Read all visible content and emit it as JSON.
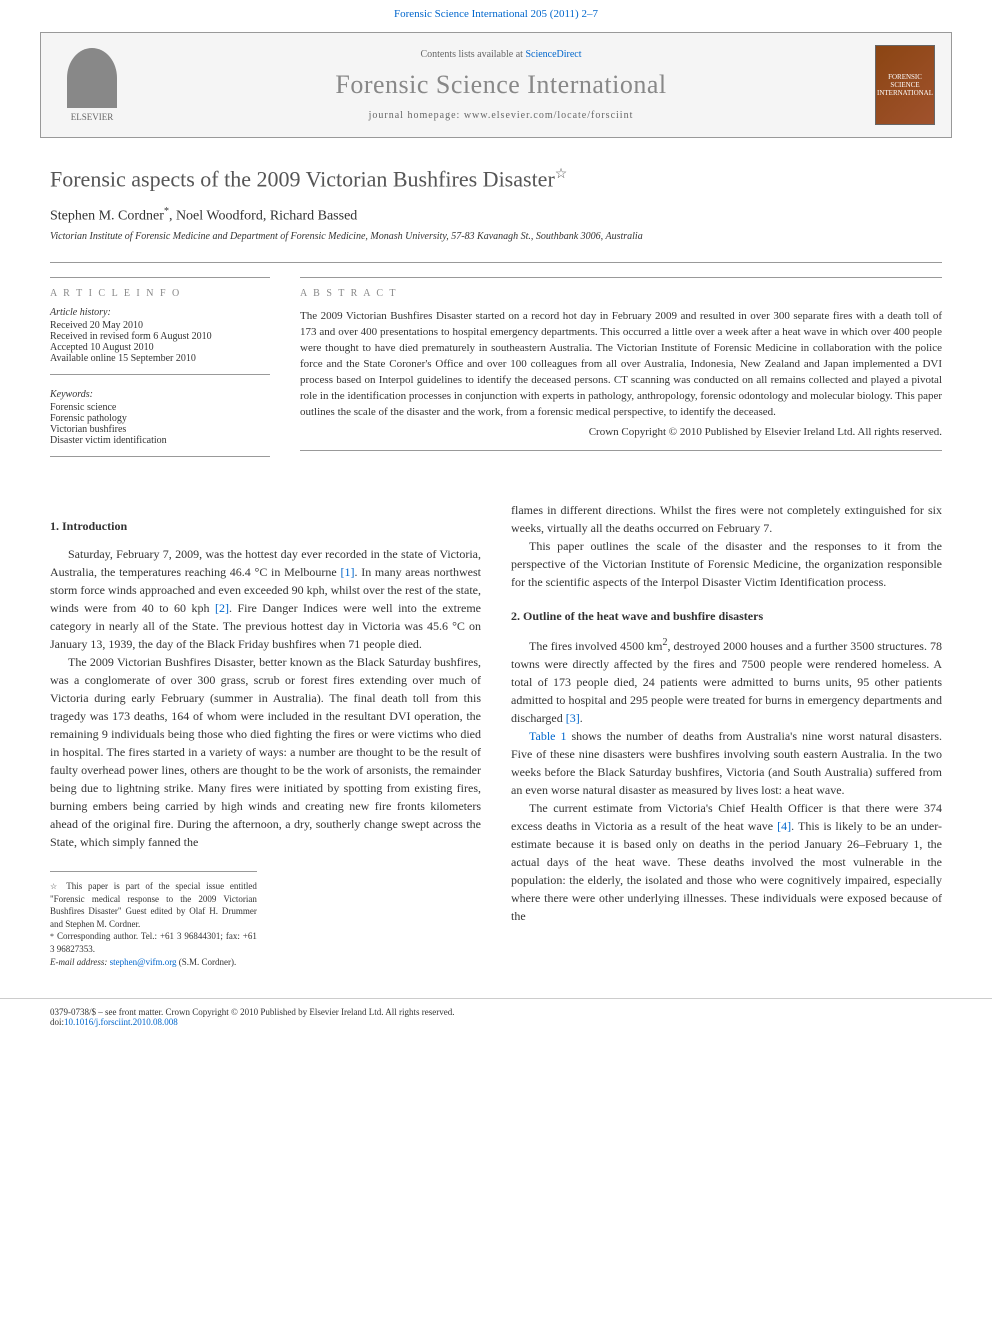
{
  "journal_header": "Forensic Science International 205 (2011) 2–7",
  "header_box": {
    "contents_text": "Contents lists available at ",
    "contents_link": "ScienceDirect",
    "journal_name": "Forensic Science International",
    "homepage_text": "journal homepage: www.elsevier.com/locate/forsciint",
    "elsevier_label": "ELSEVIER",
    "cover_text": "FORENSIC SCIENCE INTERNATIONAL"
  },
  "article": {
    "title": "Forensic aspects of the 2009 Victorian Bushfires Disaster",
    "title_note": "☆",
    "authors": "Stephen M. Cordner",
    "author_mark": "*",
    "authors_rest": ", Noel Woodford, Richard Bassed",
    "affiliation": "Victorian Institute of Forensic Medicine and Department of Forensic Medicine, Monash University, 57-83 Kavanagh St., Southbank 3006, Australia"
  },
  "article_info": {
    "heading": "A R T I C L E   I N F O",
    "history_heading": "Article history:",
    "history": [
      "Received 20 May 2010",
      "Received in revised form 6 August 2010",
      "Accepted 10 August 2010",
      "Available online 15 September 2010"
    ],
    "keywords_heading": "Keywords:",
    "keywords": [
      "Forensic science",
      "Forensic pathology",
      "Victorian bushfires",
      "Disaster victim identification"
    ]
  },
  "abstract": {
    "heading": "A B S T R A C T",
    "text": "The 2009 Victorian Bushfires Disaster started on a record hot day in February 2009 and resulted in over 300 separate fires with a death toll of 173 and over 400 presentations to hospital emergency departments. This occurred a little over a week after a heat wave in which over 400 people were thought to have died prematurely in southeastern Australia. The Victorian Institute of Forensic Medicine in collaboration with the police force and the State Coroner's Office and over 100 colleagues from all over Australia, Indonesia, New Zealand and Japan implemented a DVI process based on Interpol guidelines to identify the deceased persons. CT scanning was conducted on all remains collected and played a pivotal role in the identification processes in conjunction with experts in pathology, anthropology, forensic odontology and molecular biology. This paper outlines the scale of the disaster and the work, from a forensic medical perspective, to identify the deceased.",
    "copyright": "Crown Copyright © 2010 Published by Elsevier Ireland Ltd. All rights reserved."
  },
  "sections": {
    "intro_heading": "1. Introduction",
    "intro_p1": "Saturday, February 7, 2009, was the hottest day ever recorded in the state of Victoria, Australia, the temperatures reaching 46.4 °C in Melbourne ",
    "intro_ref1": "[1]",
    "intro_p1b": ". In many areas northwest storm force winds approached and even exceeded 90 kph, whilst over the rest of the state, winds were from 40 to 60 kph ",
    "intro_ref2": "[2]",
    "intro_p1c": ". Fire Danger Indices were well into the extreme category in nearly all of the State. The previous hottest day in Victoria was 45.6 °C on January 13, 1939, the day of the Black Friday bushfires when 71 people died.",
    "intro_p2": "The 2009 Victorian Bushfires Disaster, better known as the Black Saturday bushfires, was a conglomerate of over 300 grass, scrub or forest fires extending over much of Victoria during early February (summer in Australia). The final death toll from this tragedy was 173 deaths, 164 of whom were included in the resultant DVI operation, the remaining 9 individuals being those who died fighting the fires or were victims who died in hospital. The fires started in a variety of ways: a number are thought to be the result of faulty overhead power lines, others are thought to be the work of arsonists, the remainder being due to lightning strike. Many fires were initiated by spotting from existing fires, burning embers being carried by high winds and creating new fire fronts kilometers ahead of the original fire. During the afternoon, a dry, southerly change swept across the State, which simply fanned the",
    "col2_p1": "flames in different directions. Whilst the fires were not completely extinguished for six weeks, virtually all the deaths occurred on February 7.",
    "col2_p2": "This paper outlines the scale of the disaster and the responses to it from the perspective of the Victorian Institute of Forensic Medicine, the organization responsible for the scientific aspects of the Interpol Disaster Victim Identification process.",
    "outline_heading": "2. Outline of the heat wave and bushfire disasters",
    "outline_p1a": "The fires involved 4500 km",
    "outline_p1_sup": "2",
    "outline_p1b": ", destroyed 2000 houses and a further 3500 structures. 78 towns were directly affected by the fires and 7500 people were rendered homeless. A total of 173 people died, 24 patients were admitted to burns units, 95 other patients admitted to hospital and 295 people were treated for burns in emergency departments and discharged ",
    "outline_ref3": "[3]",
    "outline_p1c": ".",
    "outline_p2a": "",
    "outline_table_ref": "Table 1",
    "outline_p2b": " shows the number of deaths from Australia's nine worst natural disasters. Five of these nine disasters were bushfires involving south eastern Australia. In the two weeks before the Black Saturday bushfires, Victoria (and South Australia) suffered from an even worse natural disaster as measured by lives lost: a heat wave.",
    "outline_p3a": "The current estimate from Victoria's Chief Health Officer is that there were 374 excess deaths in Victoria as a result of the heat wave ",
    "outline_ref4": "[4]",
    "outline_p3b": ". This is likely to be an under-estimate because it is based only on deaths in the period January 26–February 1, the actual days of the heat wave. These deaths involved the most vulnerable in the population: the elderly, the isolated and those who were cognitively impaired, especially where there were other underlying illnesses. These individuals were exposed because of the"
  },
  "footnotes": {
    "note1_mark": "☆",
    "note1": " This paper is part of the special issue entitled \"Forensic medical response to the 2009 Victorian Bushfires Disaster\" Guest edited by Olaf H. Drummer and Stephen M. Cordner.",
    "note2_mark": "*",
    "note2": " Corresponding author. Tel.: +61 3 96844301; fax: +61 3 96827353.",
    "email_label": "E-mail address: ",
    "email": "stephen@vifm.org",
    "email_suffix": " (S.M. Cordner)."
  },
  "doi": {
    "line1": "0379-0738/$ – see front matter. Crown Copyright © 2010 Published by Elsevier Ireland Ltd. All rights reserved.",
    "line2_prefix": "doi:",
    "line2_link": "10.1016/j.forsciint.2010.08.008"
  }
}
